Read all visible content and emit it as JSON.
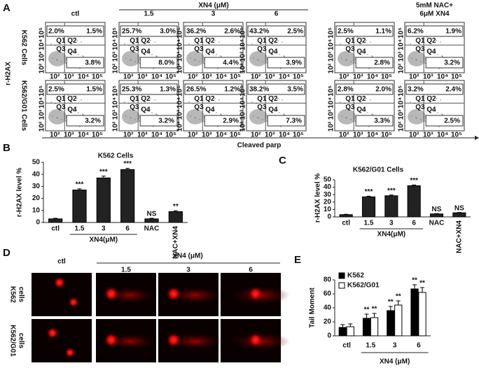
{
  "panel_a": {
    "label": "A",
    "columns": [
      [
        "ctl"
      ],
      [
        "1.5"
      ],
      [
        "3"
      ],
      [
        "6"
      ],
      [
        "5mM NAC"
      ],
      [
        "5mM NAC+",
        "6μM XN4"
      ]
    ],
    "column_group": "XN4 (μM)",
    "y_label": "r-H2AX",
    "x_label": "Cleaved parp",
    "axis_ticks": [
      "10²",
      "10³",
      "10⁴",
      "10⁵"
    ],
    "quadrants": [
      "Q1",
      "Q2",
      "Q3",
      "Q4"
    ],
    "rows": [
      {
        "name": "K562 Cells",
        "plots": [
          [
            "2.0%",
            "1.5%",
            "3.8%"
          ],
          [
            "25.7%",
            "3.0%",
            "8.0%"
          ],
          [
            "36.2%",
            "2.6%",
            "4.4%"
          ],
          [
            "43.2%",
            "2.5%",
            "3.9%"
          ],
          [
            "2.5%",
            "1.1%",
            "2.8%"
          ],
          [
            "6.2%",
            "1.9%",
            "3.2%"
          ]
        ]
      },
      {
        "name": "K562/G01 Cells",
        "plots": [
          [
            "2.5%",
            "1.5%",
            "3.2%"
          ],
          [
            "25.3%",
            "1.3%",
            "3.2%"
          ],
          [
            "26.5%",
            "1.2%",
            "2.9%"
          ],
          [
            "38.2%",
            "3.5%",
            "7.3%"
          ],
          [
            "2.8%",
            "2.0%",
            "3.3%"
          ],
          [
            "3.2%",
            "2.4%",
            "2.5%"
          ]
        ]
      }
    ]
  },
  "chart_data": [
    {
      "type": "bar",
      "label": "B",
      "title": "K562 Cells",
      "y_label": "r-H2AX level %",
      "x_group_label": "XN4(μM)",
      "categories": [
        "ctl",
        "1.5",
        "3",
        "6",
        "NAC",
        "NAC+XN4"
      ],
      "values": [
        3,
        27,
        37,
        44,
        3,
        9
      ],
      "errors": [
        0.5,
        1,
        1.5,
        1,
        0.5,
        0.8
      ],
      "annotations": [
        null,
        "***",
        "***",
        "***",
        "NS",
        "**"
      ],
      "color": "#222222",
      "ylim": [
        0,
        50
      ],
      "yticks": [
        0,
        10,
        20,
        30,
        40,
        50
      ]
    },
    {
      "type": "bar",
      "label": "C",
      "title": "K562/G01 Cells",
      "y_label": "r-H2AX level %",
      "x_group_label": "XN4(μM)",
      "categories": [
        "ctl",
        "1.5",
        "3",
        "6",
        "NAC",
        "NAC+XN4"
      ],
      "values": [
        3,
        27,
        28.5,
        42,
        4,
        5.5
      ],
      "errors": [
        0.5,
        1,
        1,
        1,
        0.5,
        0.5
      ],
      "annotations": [
        null,
        "***",
        "***",
        "***",
        "NS",
        "NS"
      ],
      "color": "#222222",
      "ylim": [
        0,
        50
      ],
      "yticks": [
        0,
        10,
        20,
        30,
        40,
        50
      ]
    },
    {
      "type": "grouped_bar",
      "label": "E",
      "y_label": "Tail Moment",
      "x_group_label": "XN4 (μM)",
      "categories": [
        "ctl",
        "1.5",
        "3",
        "6"
      ],
      "legend": "upper left",
      "ylim": [
        0,
        80
      ],
      "yticks": [
        0,
        20,
        40,
        60,
        80
      ],
      "series": [
        {
          "name": "K562",
          "color": "#000000",
          "values": [
            12,
            25,
            36,
            67
          ],
          "errors": [
            4,
            6,
            6,
            6
          ],
          "annotations": [
            null,
            "**",
            "**",
            "**"
          ]
        },
        {
          "name": "K562/G01",
          "color": "#ffffff",
          "values": [
            13,
            26,
            44,
            62
          ],
          "errors": [
            4,
            6,
            6,
            7
          ],
          "annotations": [
            null,
            "**",
            "**",
            "**"
          ]
        }
      ]
    }
  ],
  "panel_d": {
    "label": "D",
    "columns": [
      "ctl",
      "1.5",
      "3",
      "6"
    ],
    "column_group": "XN4 (μM)",
    "rows": [
      [
        "K562",
        "cells"
      ],
      [
        "K562/G01",
        "cells"
      ]
    ]
  }
}
